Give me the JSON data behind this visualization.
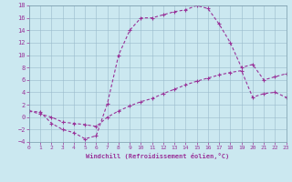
{
  "xlabel": "Windchill (Refroidissement éolien,°C)",
  "bg_color": "#cbe8f0",
  "line_color": "#993399",
  "grid_color": "#99bbcc",
  "ylim": [
    -4,
    18
  ],
  "xlim": [
    0,
    23
  ],
  "yticks": [
    -4,
    -2,
    0,
    2,
    4,
    6,
    8,
    10,
    12,
    14,
    16,
    18
  ],
  "xticks": [
    0,
    1,
    2,
    3,
    4,
    5,
    6,
    7,
    8,
    9,
    10,
    11,
    12,
    13,
    14,
    15,
    16,
    17,
    18,
    19,
    20,
    21,
    22,
    23
  ],
  "curve1_x": [
    0,
    1,
    2,
    3,
    4,
    5,
    6,
    7,
    8,
    9,
    10,
    11,
    12,
    13,
    14,
    15,
    16,
    17,
    18,
    19,
    20,
    21,
    22,
    23
  ],
  "curve1_y": [
    1.0,
    0.8,
    -1.0,
    -2.0,
    -2.5,
    -3.5,
    -3.0,
    2.2,
    10.0,
    14.0,
    16.0,
    16.0,
    16.5,
    17.0,
    17.3,
    18.0,
    17.5,
    15.0,
    12.0,
    8.0,
    8.5,
    6.0,
    6.5,
    7.0
  ],
  "curve2_x": [
    0,
    1,
    2,
    3,
    4,
    5,
    6,
    7,
    8,
    9,
    10,
    11,
    12,
    13,
    14,
    15,
    16,
    17,
    18,
    19,
    20,
    21,
    22,
    23
  ],
  "curve2_y": [
    1.0,
    0.5,
    0.0,
    -0.8,
    -1.0,
    -1.2,
    -1.5,
    0.0,
    1.0,
    1.8,
    2.5,
    3.0,
    3.8,
    4.5,
    5.2,
    5.8,
    6.3,
    6.8,
    7.2,
    7.5,
    3.2,
    3.8,
    4.0,
    3.2
  ]
}
